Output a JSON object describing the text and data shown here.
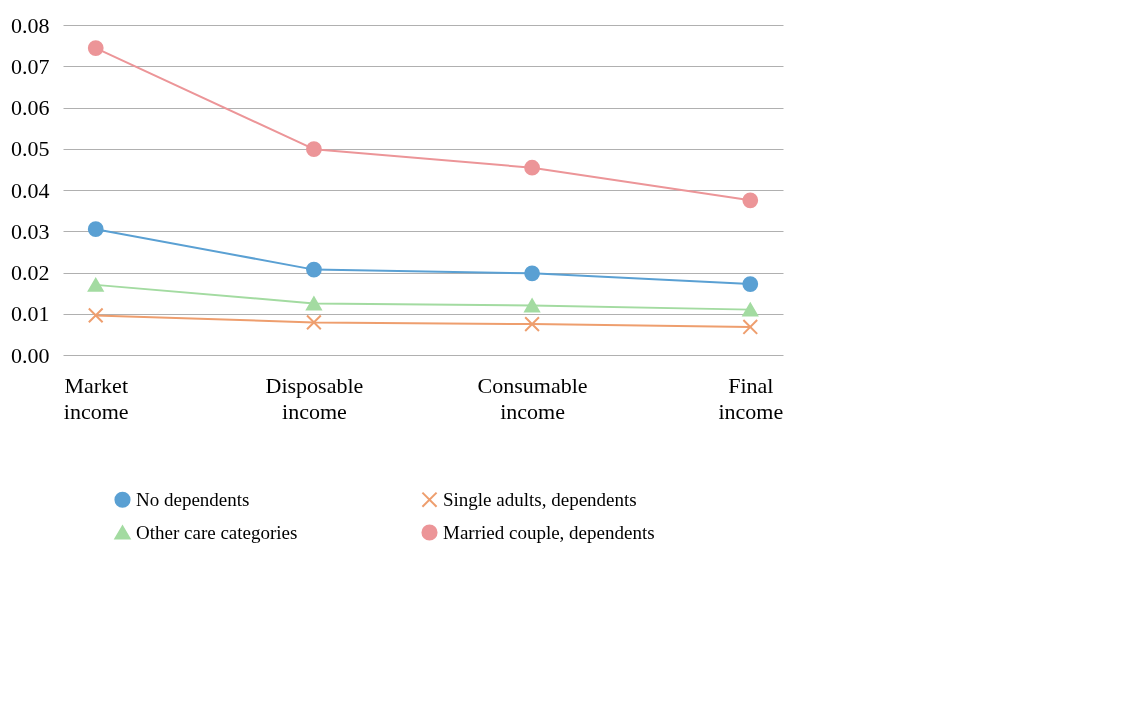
{
  "chart_data": {
    "type": "line",
    "categories": [
      "Market income",
      "Disposable income",
      "Consumable income",
      "Final income"
    ],
    "series": [
      {
        "name": "No dependents",
        "color": "#5aa0d3",
        "marker": "circle",
        "values": [
          0.0305,
          0.0207,
          0.0198,
          0.0172
        ]
      },
      {
        "name": "Single adults, dependents",
        "color": "#ee9e6e",
        "marker": "cross",
        "values": [
          0.0096,
          0.0079,
          0.0075,
          0.0068
        ]
      },
      {
        "name": "Other care categories",
        "color": "#a3dba1",
        "marker": "triangle",
        "values": [
          0.017,
          0.0125,
          0.012,
          0.011
        ]
      },
      {
        "name": "Married couple, dependents",
        "color": "#ec9598",
        "marker": "circle",
        "values": [
          0.0744,
          0.0499,
          0.0454,
          0.0375
        ]
      }
    ],
    "ylim": [
      0,
      0.08
    ],
    "yticks": [
      {
        "value": 0,
        "label": "0.00"
      },
      {
        "value": 0.01,
        "label": "0.01"
      },
      {
        "value": 0.02,
        "label": "0.02"
      },
      {
        "value": 0.03,
        "label": "0.03"
      },
      {
        "value": 0.04,
        "label": "0.04"
      },
      {
        "value": 0.05,
        "label": "0.05"
      },
      {
        "value": 0.06,
        "label": "0.06"
      },
      {
        "value": 0.07,
        "label": "0.07"
      },
      {
        "value": 0.08,
        "label": "0.08"
      }
    ],
    "grid": "y",
    "legend": "bottom",
    "line_style": "solid"
  }
}
